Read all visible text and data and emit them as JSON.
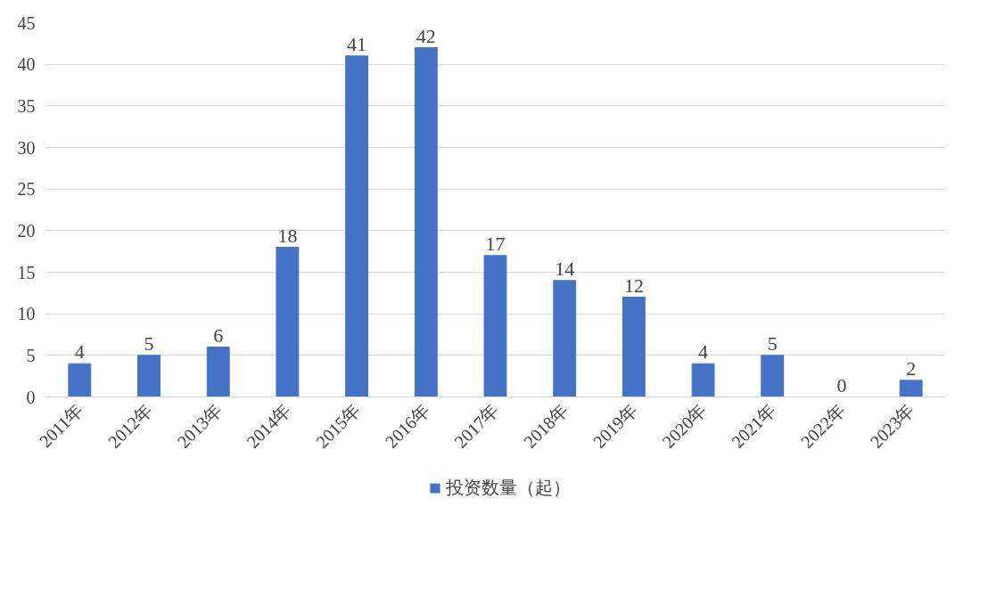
{
  "chart_data": {
    "type": "bar",
    "categories": [
      "2011年",
      "2012年",
      "2013年",
      "2014年",
      "2015年",
      "2016年",
      "2017年",
      "2018年",
      "2019年",
      "2020年",
      "2021年",
      "2022年",
      "2023年"
    ],
    "series": [
      {
        "name": "投资数量（起）",
        "color": "#4472c4",
        "values": [
          4,
          5,
          6,
          18,
          41,
          42,
          17,
          14,
          12,
          4,
          5,
          0,
          2
        ]
      }
    ],
    "ylim": [
      0,
      45
    ],
    "yticks": [
      0,
      5,
      10,
      15,
      20,
      25,
      30,
      35,
      40,
      45
    ],
    "grid": "y",
    "legend": "bottom",
    "data_labels": true
  }
}
